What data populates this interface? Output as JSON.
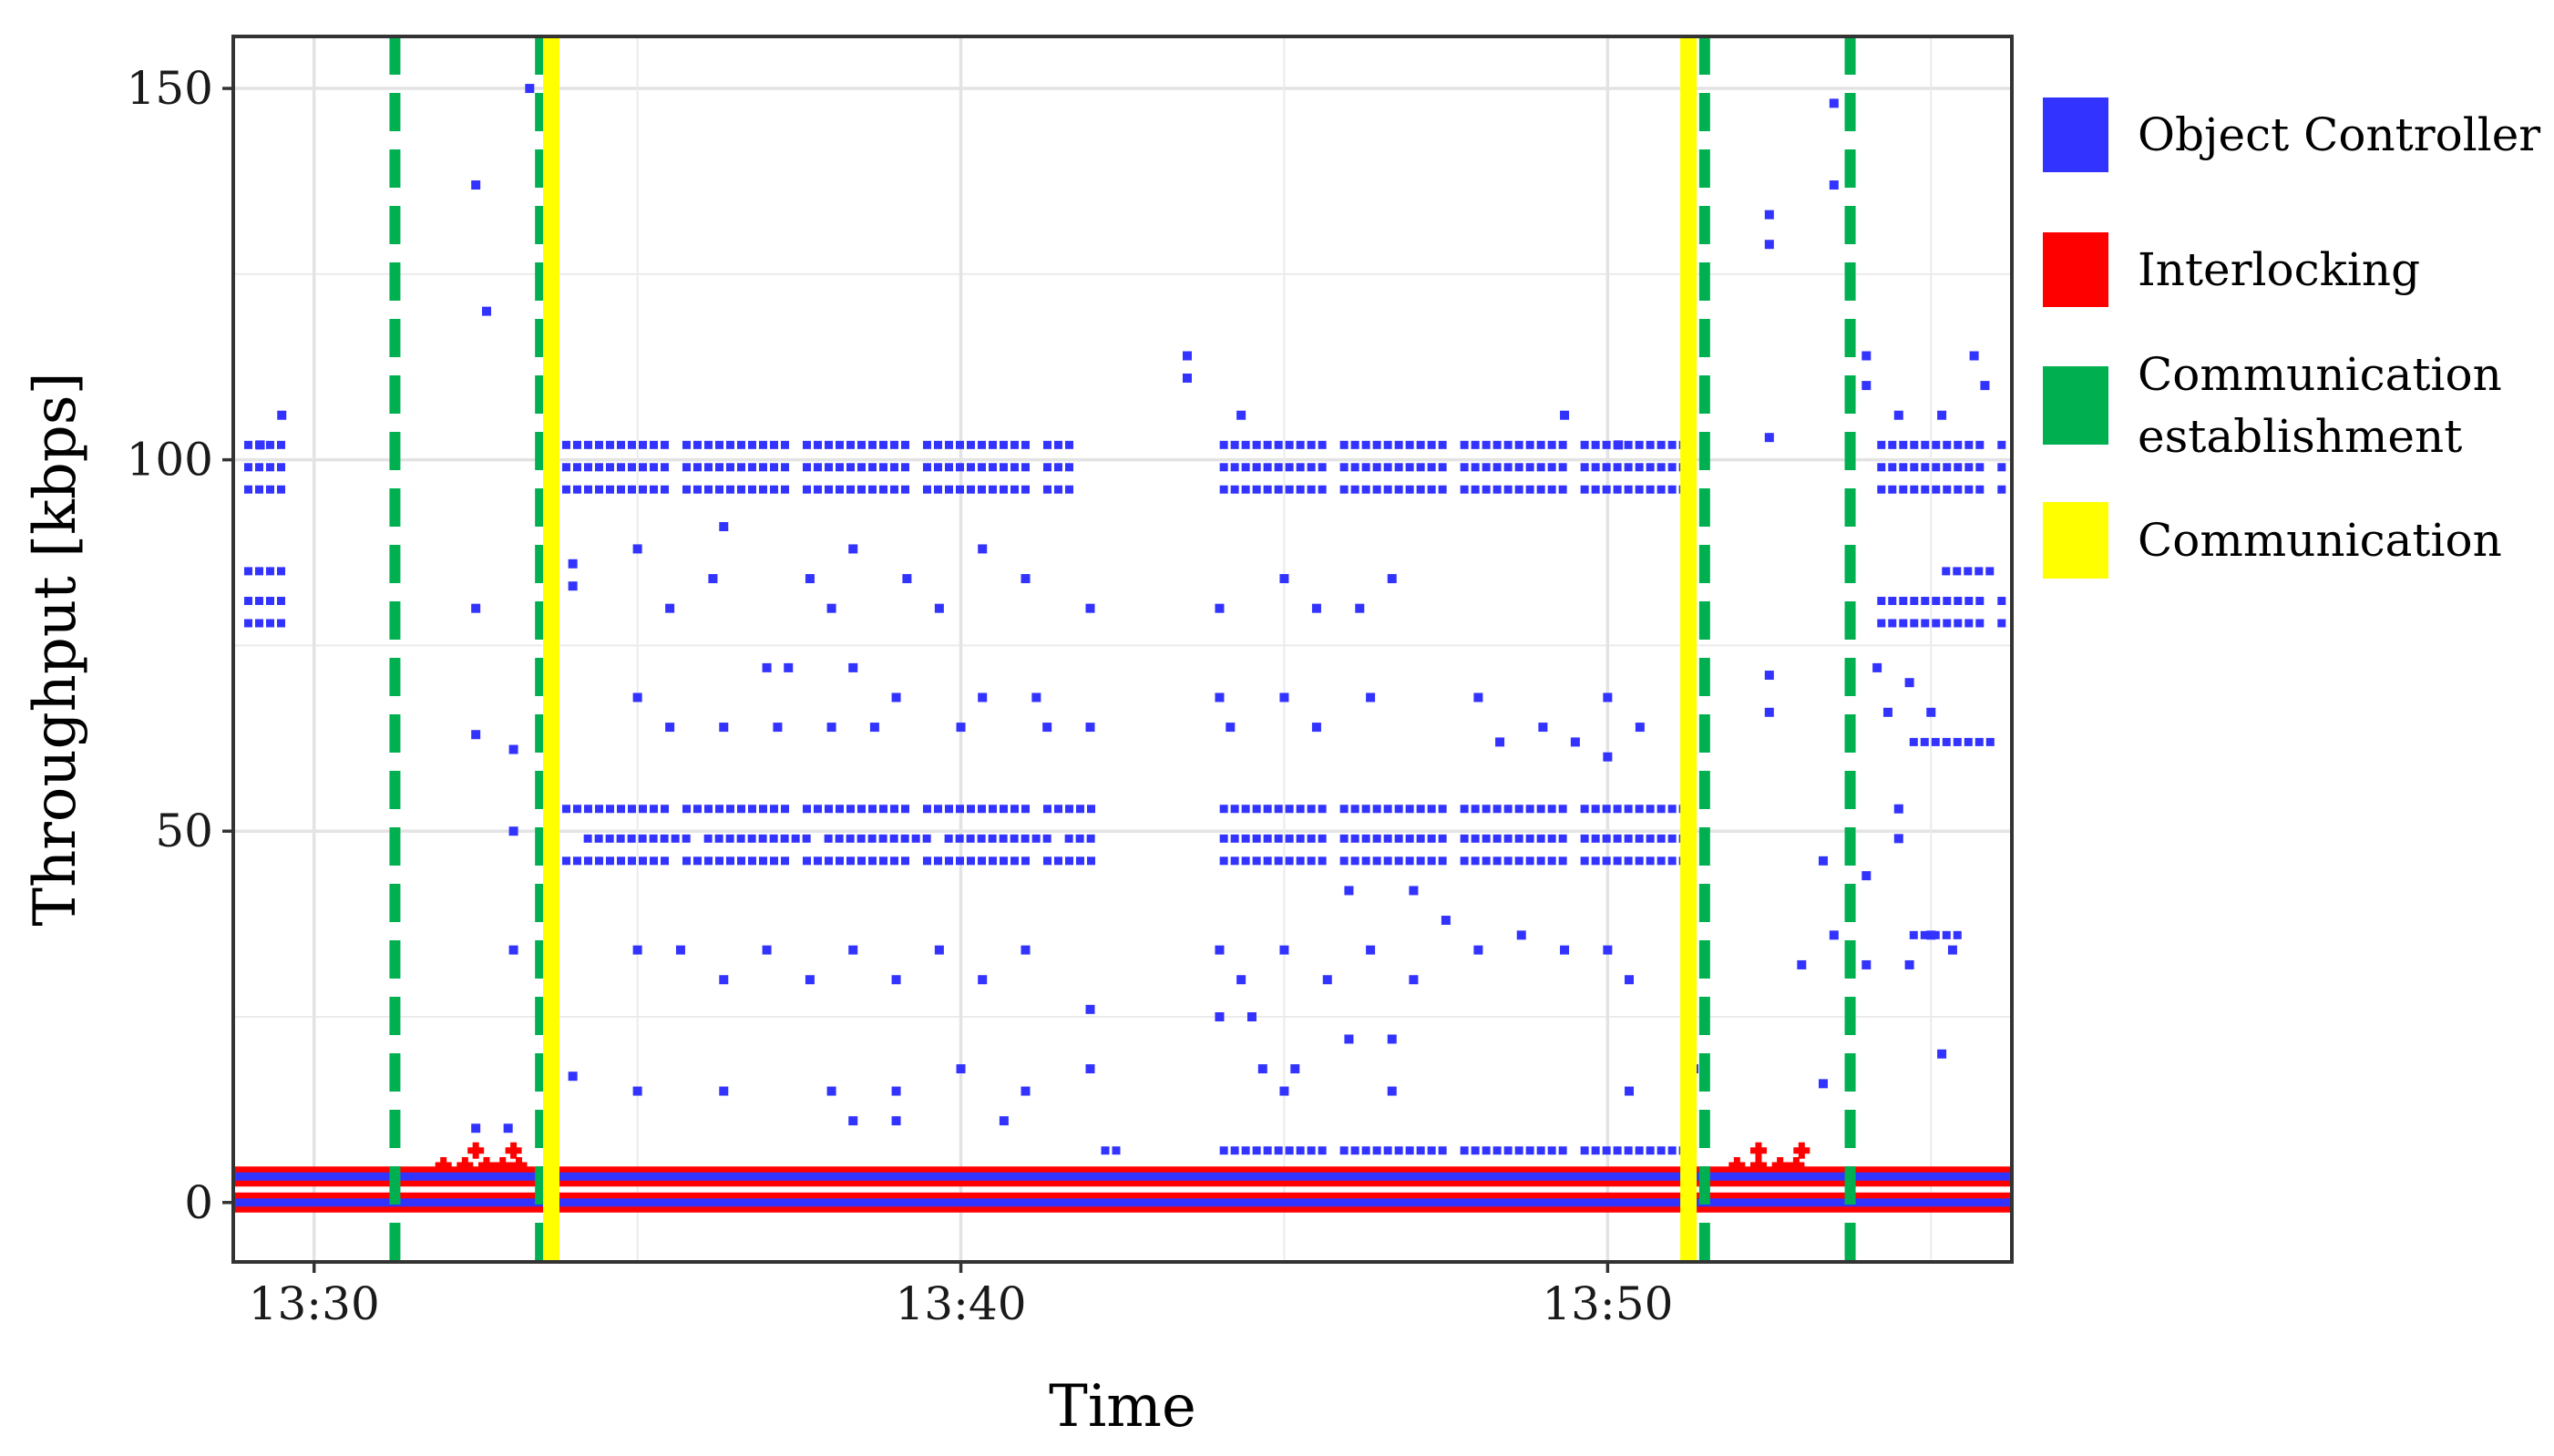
{
  "chart_data": {
    "type": "scatter",
    "xlabel": "Time",
    "ylabel": "Throughput [kbps]",
    "xlim": [
      "13:28:45",
      "13:56:15"
    ],
    "ylim": [
      -8,
      157
    ],
    "x_ticks": [
      "13:30",
      "13:40",
      "13:50"
    ],
    "y_ticks": [
      0,
      50,
      100,
      150
    ],
    "grid": true,
    "legend_position": "right",
    "colors": {
      "Object Controller": "#3333ff",
      "Interlocking": "#ff0000",
      "Communication establishment": "#00b050",
      "Communication": "#ffff00"
    },
    "legend": [
      {
        "label_lines": [
          "Object Controller"
        ],
        "color": "#3333ff"
      },
      {
        "label_lines": [
          "Interlocking"
        ],
        "color": "#ff0000"
      },
      {
        "label_lines": [
          "Communication",
          "establishment"
        ],
        "color": "#00b050"
      },
      {
        "label_lines": [
          "Communication"
        ],
        "color": "#ffff00"
      }
    ],
    "events": [
      {
        "type": "Communication establishment",
        "time": "13:31:15"
      },
      {
        "type": "Communication establishment",
        "time": "13:33:30"
      },
      {
        "type": "Communication",
        "time": "13:33:40"
      },
      {
        "type": "Communication",
        "time": "13:51:15"
      },
      {
        "type": "Communication establishment",
        "time": "13:51:30"
      },
      {
        "type": "Communication establishment",
        "time": "13:53:45"
      }
    ],
    "series": [
      {
        "name": "Interlocking",
        "bands": [
          {
            "start": "13:28:45",
            "end": "13:56:15",
            "y": 0
          },
          {
            "start": "13:28:45",
            "end": "13:56:15",
            "y": 3.5
          }
        ],
        "points": [
          [
            "13:30:40",
            3.5
          ],
          [
            "13:31:00",
            3.5
          ],
          [
            "13:31:20",
            3.5
          ],
          [
            "13:31:40",
            3.5
          ],
          [
            "13:32:00",
            5
          ],
          [
            "13:32:20",
            5
          ],
          [
            "13:32:40",
            5
          ],
          [
            "13:32:55",
            5
          ],
          [
            "13:33:10",
            5
          ],
          [
            "13:32:30",
            7
          ],
          [
            "13:33:05",
            7
          ],
          [
            "13:52:00",
            5
          ],
          [
            "13:52:20",
            5
          ],
          [
            "13:52:40",
            5
          ],
          [
            "13:52:55",
            5
          ],
          [
            "13:52:20",
            7
          ],
          [
            "13:53:00",
            7
          ]
        ]
      },
      {
        "name": "Object Controller",
        "lines": [
          {
            "start": "13:28:45",
            "end": "13:56:15",
            "y": 0
          },
          {
            "start": "13:28:45",
            "end": "13:56:15",
            "y": 3.5
          }
        ],
        "rows": [
          {
            "y": 46,
            "segments": [
              [
                "13:33:40",
                "13:42:10"
              ],
              [
                "13:43:50",
                "13:51:15"
              ]
            ]
          },
          {
            "y": 49,
            "segments": [
              [
                "13:34:00",
                "13:42:10"
              ],
              [
                "13:43:50",
                "13:51:15"
              ]
            ]
          },
          {
            "y": 53,
            "segments": [
              [
                "13:33:40",
                "13:42:10"
              ],
              [
                "13:43:50",
                "13:51:15"
              ]
            ]
          },
          {
            "y": 96,
            "segments": [
              [
                "13:28:45",
                "13:29:40"
              ],
              [
                "13:33:40",
                "13:41:50"
              ],
              [
                "13:43:50",
                "13:51:15"
              ],
              [
                "13:54:00",
                "13:56:15"
              ]
            ]
          },
          {
            "y": 99,
            "segments": [
              [
                "13:28:45",
                "13:29:40"
              ],
              [
                "13:33:40",
                "13:41:50"
              ],
              [
                "13:43:50",
                "13:51:15"
              ],
              [
                "13:54:00",
                "13:56:15"
              ]
            ]
          },
          {
            "y": 102,
            "segments": [
              [
                "13:28:45",
                "13:29:40"
              ],
              [
                "13:33:40",
                "13:41:50"
              ],
              [
                "13:43:50",
                "13:51:15"
              ],
              [
                "13:54:00",
                "13:56:15"
              ]
            ]
          },
          {
            "y": 78,
            "segments": [
              [
                "13:28:45",
                "13:29:40"
              ],
              [
                "13:54:00",
                "13:56:15"
              ]
            ]
          },
          {
            "y": 81,
            "segments": [
              [
                "13:28:45",
                "13:29:40"
              ],
              [
                "13:54:00",
                "13:56:15"
              ]
            ]
          },
          {
            "y": 85,
            "segments": [
              [
                "13:28:45",
                "13:29:40"
              ],
              [
                "13:55:00",
                "13:56:00"
              ]
            ]
          },
          {
            "y": 7,
            "segments": [
              [
                "13:42:00",
                "13:42:30"
              ],
              [
                "13:43:50",
                "13:51:15"
              ]
            ]
          },
          {
            "y": 62,
            "segments": [
              [
                "13:54:30",
                "13:56:00"
              ]
            ]
          },
          {
            "y": 36,
            "segments": [
              [
                "13:54:30",
                "13:55:30"
              ]
            ]
          }
        ],
        "scatter": [
          [
            "13:32:30",
            137
          ],
          [
            "13:32:40",
            120
          ],
          [
            "13:32:30",
            80
          ],
          [
            "13:32:30",
            63
          ],
          [
            "13:33:20",
            150
          ],
          [
            "13:33:05",
            61
          ],
          [
            "13:33:05",
            34
          ],
          [
            "13:33:05",
            50
          ],
          [
            "13:32:30",
            10
          ],
          [
            "13:33:00",
            10
          ],
          [
            "13:29:30",
            106
          ],
          [
            "13:29:10",
            102
          ],
          [
            "13:35:00",
            88
          ],
          [
            "13:36:20",
            91
          ],
          [
            "13:38:20",
            88
          ],
          [
            "13:39:10",
            84
          ],
          [
            "13:40:20",
            88
          ],
          [
            "13:41:00",
            84
          ],
          [
            "13:38:00",
            80
          ],
          [
            "13:39:40",
            80
          ],
          [
            "13:35:30",
            80
          ],
          [
            "13:36:10",
            84
          ],
          [
            "13:37:40",
            84
          ],
          [
            "13:42:00",
            80
          ],
          [
            "13:44:00",
            80
          ],
          [
            "13:45:00",
            84
          ],
          [
            "13:45:30",
            80
          ],
          [
            "13:46:10",
            80
          ],
          [
            "13:46:40",
            84
          ],
          [
            "13:34:00",
            86
          ],
          [
            "13:34:00",
            83
          ],
          [
            "13:35:30",
            64
          ],
          [
            "13:36:20",
            64
          ],
          [
            "13:37:10",
            64
          ],
          [
            "13:38:00",
            64
          ],
          [
            "13:38:40",
            64
          ],
          [
            "13:40:00",
            64
          ],
          [
            "13:41:20",
            64
          ],
          [
            "13:42:00",
            64
          ],
          [
            "13:35:00",
            68
          ],
          [
            "13:37:00",
            72
          ],
          [
            "13:37:20",
            72
          ],
          [
            "13:38:20",
            72
          ],
          [
            "13:39:00",
            68
          ],
          [
            "13:40:20",
            68
          ],
          [
            "13:41:10",
            68
          ],
          [
            "13:44:00",
            68
          ],
          [
            "13:44:10",
            64
          ],
          [
            "13:45:00",
            68
          ],
          [
            "13:45:30",
            64
          ],
          [
            "13:46:20",
            68
          ],
          [
            "13:48:00",
            68
          ],
          [
            "13:49:00",
            64
          ],
          [
            "13:50:00",
            68
          ],
          [
            "13:50:30",
            64
          ],
          [
            "13:48:20",
            62
          ],
          [
            "13:49:30",
            62
          ],
          [
            "13:50:00",
            60
          ],
          [
            "13:35:00",
            34
          ],
          [
            "13:35:40",
            34
          ],
          [
            "13:36:20",
            30
          ],
          [
            "13:37:00",
            34
          ],
          [
            "13:37:40",
            30
          ],
          [
            "13:38:20",
            34
          ],
          [
            "13:39:00",
            30
          ],
          [
            "13:39:40",
            34
          ],
          [
            "13:40:20",
            30
          ],
          [
            "13:41:00",
            34
          ],
          [
            "13:42:00",
            26
          ],
          [
            "13:44:00",
            34
          ],
          [
            "13:44:20",
            30
          ],
          [
            "13:45:00",
            34
          ],
          [
            "13:45:40",
            30
          ],
          [
            "13:46:20",
            34
          ],
          [
            "13:47:00",
            30
          ],
          [
            "13:48:00",
            34
          ],
          [
            "13:48:40",
            36
          ],
          [
            "13:49:20",
            34
          ],
          [
            "13:50:00",
            34
          ],
          [
            "13:50:20",
            30
          ],
          [
            "13:46:00",
            22
          ],
          [
            "13:46:40",
            22
          ],
          [
            "13:44:00",
            25
          ],
          [
            "13:44:30",
            25
          ],
          [
            "13:44:40",
            18
          ],
          [
            "13:45:10",
            18
          ],
          [
            "13:46:00",
            42
          ],
          [
            "13:47:00",
            42
          ],
          [
            "13:47:30",
            38
          ],
          [
            "13:35:00",
            15
          ],
          [
            "13:36:20",
            15
          ],
          [
            "13:38:00",
            15
          ],
          [
            "13:39:00",
            15
          ],
          [
            "13:40:00",
            18
          ],
          [
            "13:41:00",
            15
          ],
          [
            "13:42:00",
            18
          ],
          [
            "13:38:20",
            11
          ],
          [
            "13:39:00",
            11
          ],
          [
            "13:40:40",
            11
          ],
          [
            "13:45:00",
            15
          ],
          [
            "13:46:40",
            15
          ],
          [
            "13:50:20",
            15
          ],
          [
            "13:34:00",
            17
          ],
          [
            "13:52:30",
            133
          ],
          [
            "13:52:30",
            129
          ],
          [
            "13:53:30",
            148
          ],
          [
            "13:53:30",
            137
          ],
          [
            "13:52:30",
            103
          ],
          [
            "13:54:00",
            114
          ],
          [
            "13:54:00",
            110
          ],
          [
            "13:55:40",
            114
          ],
          [
            "13:55:50",
            110
          ],
          [
            "13:55:10",
            106
          ],
          [
            "13:54:30",
            106
          ],
          [
            "13:52:30",
            71
          ],
          [
            "13:52:30",
            66
          ],
          [
            "13:54:10",
            72
          ],
          [
            "13:54:40",
            70
          ],
          [
            "13:55:00",
            66
          ],
          [
            "13:54:20",
            66
          ],
          [
            "13:53:20",
            46
          ],
          [
            "13:53:30",
            36
          ],
          [
            "13:53:00",
            32
          ],
          [
            "13:54:00",
            32
          ],
          [
            "13:54:40",
            32
          ],
          [
            "13:55:00",
            36
          ],
          [
            "13:55:20",
            34
          ],
          [
            "13:55:10",
            20
          ],
          [
            "13:53:20",
            16
          ],
          [
            "13:54:00",
            44
          ],
          [
            "13:54:30",
            49
          ],
          [
            "13:54:30",
            53
          ],
          [
            "13:51:15",
            74
          ],
          [
            "13:51:20",
            18
          ],
          [
            "13:51:15",
            36
          ],
          [
            "13:51:15",
            32
          ],
          [
            "13:43:30",
            114
          ],
          [
            "13:43:30",
            111
          ],
          [
            "13:44:20",
            106
          ],
          [
            "13:49:20",
            106
          ],
          [
            "13:50:10",
            102
          ]
        ]
      }
    ]
  }
}
